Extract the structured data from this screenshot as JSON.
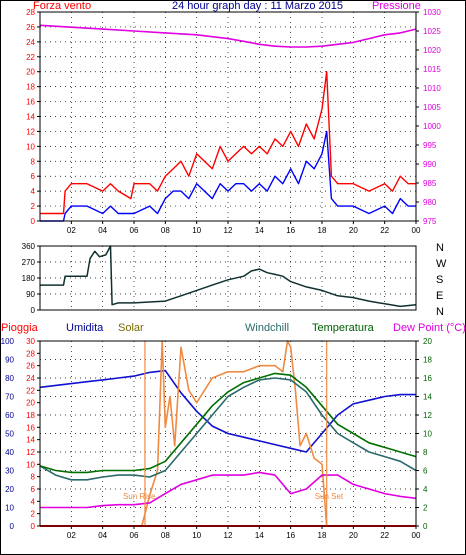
{
  "header": {
    "left_label": "Forza vento",
    "title": "24 hour graph day : 11 Marzo 2015",
    "right_label": "Pressione"
  },
  "colors": {
    "pressure": "#e000e0",
    "gust": "#ff0000",
    "wind": "#0000ff",
    "direction": "#103030",
    "humidity": "#1010d0",
    "solar": "#f08a40",
    "windchill": "#2a6a6a",
    "temperature": "#007000",
    "dewpoint": "#e000e0",
    "rain": "#ff0000",
    "label_red": "#ff0000",
    "label_blue": "#000090",
    "label_olive": "#7a6a00",
    "label_teal": "#2a6a6a",
    "label_green": "#006000",
    "label_magenta": "#e000e0",
    "grid": "#000000"
  },
  "x_ticks": [
    "02",
    "04",
    "06",
    "08",
    "10",
    "12",
    "14",
    "16",
    "18",
    "20",
    "22",
    "00"
  ],
  "chart_data": [
    {
      "type": "line",
      "title": "24 hour graph day : 11 Marzo 2015",
      "x_unit": "hours",
      "xlim": [
        0,
        24
      ],
      "left_axis": {
        "label": "Forza vento",
        "range": [
          0,
          28
        ],
        "ticks": [
          0,
          2,
          4,
          6,
          8,
          10,
          12,
          14,
          16,
          18,
          20,
          22,
          24,
          26,
          28
        ]
      },
      "right_axis": {
        "label": "Pressione",
        "range": [
          975,
          1030
        ],
        "ticks": [
          975,
          980,
          985,
          990,
          995,
          1000,
          1005,
          1010,
          1015,
          1020,
          1025,
          1030
        ]
      },
      "grid": true,
      "series": [
        {
          "name": "Pressione",
          "axis": "right",
          "x": [
            0,
            2,
            4,
            6,
            8,
            10,
            11,
            12,
            13,
            14,
            15,
            16,
            17,
            18,
            19,
            20,
            21,
            22,
            23,
            24
          ],
          "values": [
            1026.5,
            1026,
            1025.5,
            1025,
            1024.5,
            1024,
            1023.5,
            1023,
            1022.3,
            1021.5,
            1021,
            1020.8,
            1020.8,
            1021,
            1021.5,
            1022,
            1023,
            1024,
            1024.5,
            1025.5
          ]
        },
        {
          "name": "Raffica",
          "axis": "left",
          "x": [
            0,
            1.5,
            1.6,
            2,
            3,
            4,
            4.5,
            5,
            5.8,
            6,
            7,
            7.5,
            8,
            8.5,
            9,
            9.5,
            10,
            10.5,
            11,
            11.5,
            12,
            12.5,
            13,
            13.5,
            14,
            14.5,
            15,
            15.5,
            16,
            16.5,
            17,
            17.5,
            18,
            18.3,
            18.6,
            19,
            20,
            21,
            22,
            22.5,
            23,
            23.5,
            24
          ],
          "values": [
            1,
            1,
            4,
            5,
            5,
            4,
            5,
            4,
            3,
            5,
            5,
            4,
            6,
            7,
            8,
            6,
            9,
            8,
            7,
            10,
            8,
            9,
            10,
            9,
            10,
            9,
            11,
            10,
            12,
            10,
            13,
            11,
            15,
            20,
            6,
            5,
            5,
            4,
            5,
            4,
            6,
            5,
            5
          ]
        },
        {
          "name": "Vento",
          "axis": "left",
          "x": [
            0,
            1.5,
            1.6,
            2,
            3,
            4,
            4.5,
            5,
            5.8,
            6,
            7,
            7.5,
            8,
            8.5,
            9,
            9.5,
            10,
            10.5,
            11,
            11.5,
            12,
            12.5,
            13,
            13.5,
            14,
            14.5,
            15,
            15.5,
            16,
            16.5,
            17,
            17.5,
            18,
            18.3,
            18.6,
            19,
            20,
            21,
            22,
            22.5,
            23,
            23.5,
            24
          ],
          "values": [
            0,
            0,
            1,
            2,
            2,
            1,
            2,
            1,
            1,
            1,
            2,
            1,
            3,
            4,
            4,
            3,
            5,
            4,
            3,
            5,
            4,
            5,
            5,
            4,
            5,
            4,
            6,
            5,
            7,
            5,
            8,
            7,
            9,
            12,
            3,
            2,
            2,
            1,
            2,
            1,
            3,
            2,
            2
          ]
        }
      ]
    },
    {
      "type": "line",
      "x_unit": "hours",
      "xlim": [
        0,
        24
      ],
      "left_axis": {
        "range": [
          0,
          360
        ],
        "ticks": [
          0,
          90,
          180,
          270,
          360
        ]
      },
      "right_axis": {
        "labels": [
          "N",
          "W",
          "S",
          "E",
          "N"
        ]
      },
      "grid": true,
      "series": [
        {
          "name": "Direzione vento",
          "x": [
            0,
            1.5,
            1.6,
            3,
            3.2,
            3.5,
            3.8,
            4.2,
            4.5,
            4.6,
            5,
            6,
            7,
            8,
            9,
            10,
            11,
            12,
            13,
            13.5,
            14,
            14.5,
            15,
            15.5,
            16,
            17,
            18,
            19,
            20,
            21,
            22,
            23,
            24
          ],
          "values": [
            140,
            140,
            190,
            190,
            290,
            330,
            300,
            310,
            360,
            30,
            40,
            40,
            45,
            50,
            80,
            110,
            140,
            170,
            190,
            220,
            230,
            210,
            200,
            190,
            160,
            130,
            110,
            80,
            70,
            50,
            35,
            20,
            30
          ]
        }
      ]
    },
    {
      "type": "line",
      "x_unit": "hours",
      "xlim": [
        0,
        24
      ],
      "series_labels": [
        "Pioggia",
        "Umidita",
        "Solar",
        "Windchill",
        "Temperatura",
        "Dew Point (°C)"
      ],
      "axes": {
        "humidity": {
          "range": [
            0,
            100
          ],
          "ticks": [
            0,
            10,
            20,
            30,
            40,
            50,
            60,
            70,
            80,
            90,
            100
          ]
        },
        "rain_solar": {
          "range": [
            0,
            30
          ],
          "ticks": [
            0,
            2,
            4,
            6,
            8,
            10,
            12,
            14,
            16,
            18,
            20,
            22,
            24,
            26,
            28,
            30
          ]
        },
        "temperature": {
          "range": [
            0,
            20
          ],
          "ticks": [
            0,
            2,
            4,
            6,
            8,
            10,
            12,
            14,
            16,
            18,
            20
          ]
        }
      },
      "annotations": [
        {
          "text": "Sun Rise",
          "x": 6.7
        },
        {
          "text": "Sun Set",
          "x": 18.3
        }
      ],
      "grid": true,
      "series": [
        {
          "name": "Umidita",
          "axis": "humidity",
          "x": [
            0,
            1,
            2,
            3,
            4,
            5,
            6,
            7,
            8,
            9,
            10,
            10.5,
            11,
            12,
            13,
            14,
            15,
            16,
            17,
            18,
            19,
            20,
            21,
            22,
            23,
            24
          ],
          "values": [
            75,
            76,
            77,
            78,
            79,
            80,
            81,
            83,
            84,
            72,
            62,
            58,
            54,
            50,
            48,
            46,
            44,
            42,
            40,
            50,
            60,
            66,
            68,
            70,
            71,
            71
          ]
        },
        {
          "name": "Solar",
          "axis": "rain_solar",
          "x": [
            0,
            6.5,
            6.7,
            7,
            7.5,
            7.8,
            8,
            8.3,
            8.6,
            9,
            9.5,
            10,
            11,
            12,
            13,
            14,
            15,
            15.5,
            15.8,
            16,
            16.3,
            16.6,
            17,
            17.5,
            18,
            18.3,
            18.5,
            24
          ],
          "values": [
            0,
            0,
            2,
            5,
            9,
            30,
            16,
            21,
            13,
            29,
            22,
            20,
            24,
            25,
            25,
            26,
            26,
            25,
            30,
            29,
            22,
            13,
            15,
            11,
            10,
            0,
            0,
            0
          ]
        },
        {
          "name": "Windchill",
          "axis": "temperature",
          "x": [
            0,
            1,
            2,
            3,
            4,
            5,
            6,
            7,
            8,
            9,
            10,
            11,
            12,
            13,
            14,
            15,
            16,
            17,
            18,
            19,
            20,
            21,
            22,
            23,
            24
          ],
          "values": [
            6.5,
            5.5,
            5,
            5,
            5.3,
            5.5,
            5.5,
            5.3,
            6,
            8,
            10,
            12,
            14,
            15,
            15.8,
            16,
            15.8,
            14.5,
            12,
            10,
            9,
            8,
            7.5,
            7,
            6
          ]
        },
        {
          "name": "Temperatura",
          "axis": "temperature",
          "x": [
            0,
            1,
            2,
            3,
            4,
            5,
            6,
            7,
            8,
            9,
            10,
            11,
            12,
            13,
            14,
            15,
            16,
            17,
            18,
            19,
            20,
            21,
            22,
            23,
            24
          ],
          "values": [
            6.5,
            6,
            5.8,
            5.8,
            6,
            6,
            6,
            6.2,
            7,
            9,
            11,
            13,
            14.5,
            15.5,
            16,
            16.5,
            16.3,
            15,
            13,
            11,
            10,
            9,
            8.5,
            8,
            7.5
          ]
        },
        {
          "name": "Dew Point (°C)",
          "axis": "temperature",
          "x": [
            0,
            1,
            2,
            3,
            4,
            5,
            6,
            7,
            8,
            9,
            10,
            11,
            12,
            13,
            14,
            15,
            16,
            17,
            18,
            19,
            20,
            21,
            22,
            23,
            24
          ],
          "values": [
            2,
            2,
            2,
            2,
            2.2,
            2.3,
            2.3,
            2.5,
            3.5,
            4.5,
            5,
            5.5,
            5.5,
            5.5,
            5.8,
            5.5,
            3.5,
            4,
            5.5,
            5.5,
            4.5,
            4,
            3.5,
            3.2,
            3
          ]
        },
        {
          "name": "Pioggia",
          "axis": "rain_solar",
          "x": [
            0,
            24
          ],
          "values": [
            0,
            0
          ]
        }
      ]
    }
  ],
  "panel2_right_labels": [
    "N",
    "W",
    "S",
    "E",
    "N"
  ],
  "panel3_header": {
    "pioggia": "Pioggia",
    "umidita": "Umidita",
    "solar": "Solar",
    "windchill": "Windchill",
    "temperatura": "Temperatura",
    "dewpoint": "Dew Point (°C)"
  },
  "annotations": {
    "sunrise": "Sun Rise",
    "sunset": "Sun Set"
  }
}
